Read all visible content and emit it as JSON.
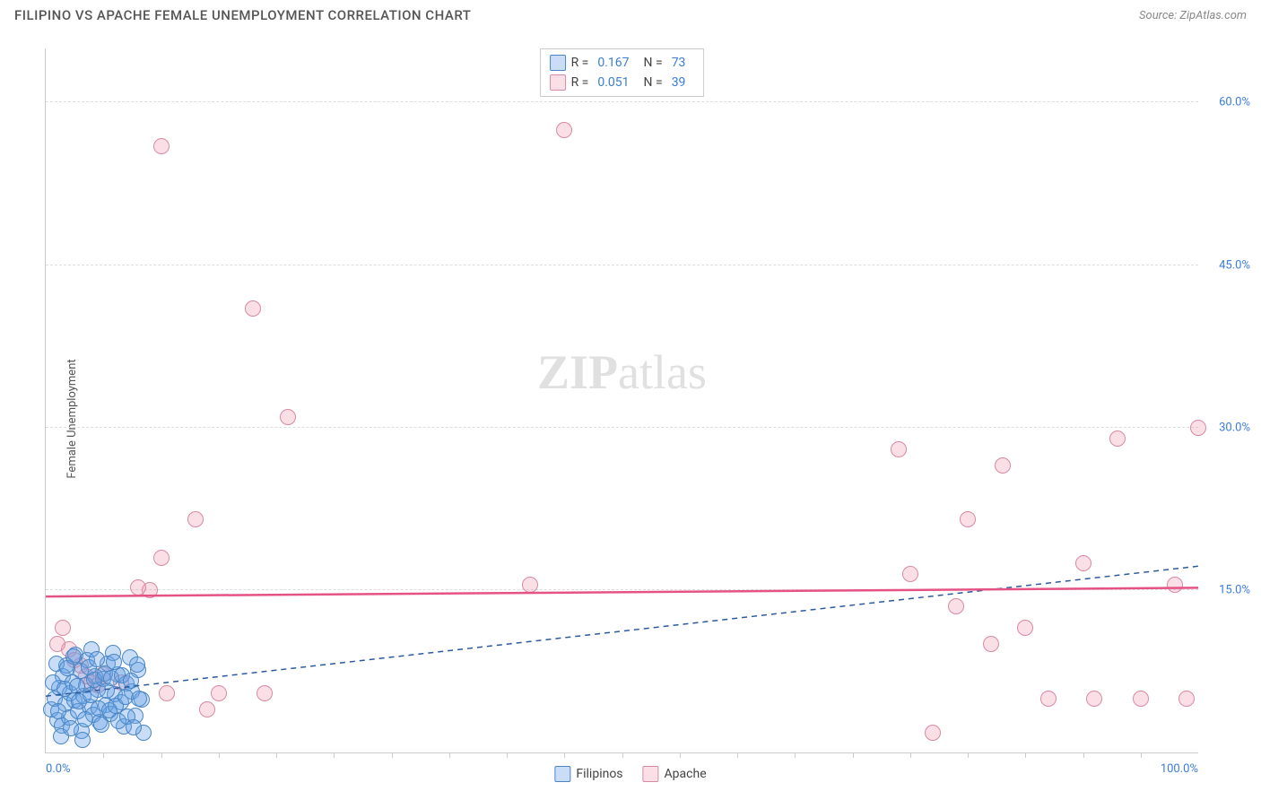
{
  "header": {
    "title": "FILIPINO VS APACHE FEMALE UNEMPLOYMENT CORRELATION CHART",
    "source": "Source: ZipAtlas.com"
  },
  "yaxis": {
    "title": "Female Unemployment",
    "min": 0,
    "max": 65,
    "ticks": [
      {
        "v": 15,
        "label": "15.0%"
      },
      {
        "v": 30,
        "label": "30.0%"
      },
      {
        "v": 45,
        "label": "45.0%"
      },
      {
        "v": 60,
        "label": "60.0%"
      }
    ]
  },
  "xaxis": {
    "min": 0,
    "max": 100,
    "minor_ticks": [
      5,
      10,
      15,
      20,
      25,
      30,
      35,
      40,
      45,
      50,
      55,
      60,
      65,
      70,
      75,
      80,
      85,
      90,
      95
    ],
    "labels": [
      {
        "v": 0,
        "label": "0.0%"
      },
      {
        "v": 100,
        "label": "100.0%"
      }
    ]
  },
  "series": {
    "filipinos": {
      "label": "Filipinos",
      "fill": "rgba(100,160,230,0.35)",
      "stroke": "#4a86c5",
      "marker_radius": 9,
      "r_value": "0.167",
      "n_value": "73",
      "trend": {
        "y_at_x0": 5.2,
        "y_at_x100": 17.2,
        "dashed": true,
        "color": "#2d5a9e",
        "width": 1.5
      },
      "points": [
        {
          "x": 0.5,
          "y": 4
        },
        {
          "x": 0.8,
          "y": 5
        },
        {
          "x": 1,
          "y": 3
        },
        {
          "x": 1.2,
          "y": 6
        },
        {
          "x": 1.4,
          "y": 2.5
        },
        {
          "x": 1.5,
          "y": 7
        },
        {
          "x": 1.7,
          "y": 4.5
        },
        {
          "x": 1.8,
          "y": 8
        },
        {
          "x": 2,
          "y": 3.2
        },
        {
          "x": 2.1,
          "y": 5.5
        },
        {
          "x": 2.3,
          "y": 6.5
        },
        {
          "x": 2.5,
          "y": 4.8
        },
        {
          "x": 2.6,
          "y": 9
        },
        {
          "x": 2.8,
          "y": 3.8
        },
        {
          "x": 3,
          "y": 7.5
        },
        {
          "x": 3.1,
          "y": 2
        },
        {
          "x": 3.3,
          "y": 5.2
        },
        {
          "x": 3.5,
          "y": 6.2
        },
        {
          "x": 3.6,
          "y": 8.5
        },
        {
          "x": 3.8,
          "y": 4.2
        },
        {
          "x": 4,
          "y": 9.5
        },
        {
          "x": 4.1,
          "y": 3.5
        },
        {
          "x": 4.3,
          "y": 7
        },
        {
          "x": 4.5,
          "y": 5.8
        },
        {
          "x": 4.7,
          "y": 2.8
        },
        {
          "x": 5,
          "y": 6.8
        },
        {
          "x": 5.2,
          "y": 4.4
        },
        {
          "x": 5.4,
          "y": 8.2
        },
        {
          "x": 5.6,
          "y": 3.6
        },
        {
          "x": 5.8,
          "y": 9.2
        },
        {
          "x": 6,
          "y": 5.4
        },
        {
          "x": 6.2,
          "y": 7.2
        },
        {
          "x": 6.5,
          "y": 4.6
        },
        {
          "x": 6.8,
          "y": 2.4
        },
        {
          "x": 7,
          "y": 6.4
        },
        {
          "x": 7.3,
          "y": 8.8
        },
        {
          "x": 7.5,
          "y": 5.6
        },
        {
          "x": 7.8,
          "y": 3.4
        },
        {
          "x": 8,
          "y": 7.6
        },
        {
          "x": 8.3,
          "y": 4.9
        },
        {
          "x": 8.5,
          "y": 1.8
        },
        {
          "x": 1.3,
          "y": 1.5
        },
        {
          "x": 2.2,
          "y": 2.2
        },
        {
          "x": 3.2,
          "y": 1.2
        },
        {
          "x": 0.6,
          "y": 6.5
        },
        {
          "x": 0.9,
          "y": 8.2
        },
        {
          "x": 1.1,
          "y": 3.8
        },
        {
          "x": 1.6,
          "y": 5.9
        },
        {
          "x": 1.9,
          "y": 7.8
        },
        {
          "x": 2.4,
          "y": 8.9
        },
        {
          "x": 2.7,
          "y": 6.1
        },
        {
          "x": 2.9,
          "y": 4.7
        },
        {
          "x": 3.4,
          "y": 3.1
        },
        {
          "x": 3.7,
          "y": 7.9
        },
        {
          "x": 3.9,
          "y": 5.3
        },
        {
          "x": 4.2,
          "y": 6.7
        },
        {
          "x": 4.4,
          "y": 8.6
        },
        {
          "x": 4.6,
          "y": 4.1
        },
        {
          "x": 4.8,
          "y": 2.6
        },
        {
          "x": 5.1,
          "y": 7.3
        },
        {
          "x": 5.3,
          "y": 5.7
        },
        {
          "x": 5.5,
          "y": 3.9
        },
        {
          "x": 5.7,
          "y": 6.9
        },
        {
          "x": 5.9,
          "y": 8.4
        },
        {
          "x": 6.1,
          "y": 4.3
        },
        {
          "x": 6.3,
          "y": 2.9
        },
        {
          "x": 6.6,
          "y": 7.1
        },
        {
          "x": 6.9,
          "y": 5.1
        },
        {
          "x": 7.1,
          "y": 3.3
        },
        {
          "x": 7.4,
          "y": 6.6
        },
        {
          "x": 7.6,
          "y": 2.3
        },
        {
          "x": 7.9,
          "y": 8.1
        },
        {
          "x": 8.1,
          "y": 5.0
        }
      ]
    },
    "apache": {
      "label": "Apache",
      "fill": "rgba(240,150,175,0.30)",
      "stroke": "#d88aa3",
      "marker_radius": 9,
      "r_value": "0.051",
      "n_value": "39",
      "trend": {
        "y_at_x0": 14.4,
        "y_at_x100": 15.2,
        "dashed": false,
        "color": "#e55384",
        "width": 2.5
      },
      "points": [
        {
          "x": 10,
          "y": 56
        },
        {
          "x": 45,
          "y": 57.5
        },
        {
          "x": 18,
          "y": 41
        },
        {
          "x": 21,
          "y": 31
        },
        {
          "x": 13,
          "y": 21.5
        },
        {
          "x": 9,
          "y": 15
        },
        {
          "x": 8,
          "y": 15.2
        },
        {
          "x": 10,
          "y": 18
        },
        {
          "x": 1.5,
          "y": 11.5
        },
        {
          "x": 2,
          "y": 9.5
        },
        {
          "x": 2.5,
          "y": 8.5
        },
        {
          "x": 3,
          "y": 8
        },
        {
          "x": 3.5,
          "y": 7
        },
        {
          "x": 4,
          "y": 6.5
        },
        {
          "x": 4.5,
          "y": 6.2
        },
        {
          "x": 5,
          "y": 7.2
        },
        {
          "x": 6.5,
          "y": 6.5
        },
        {
          "x": 10.5,
          "y": 5.5
        },
        {
          "x": 14,
          "y": 4
        },
        {
          "x": 15,
          "y": 5.5
        },
        {
          "x": 19,
          "y": 5.5
        },
        {
          "x": 42,
          "y": 15.5
        },
        {
          "x": 74,
          "y": 28
        },
        {
          "x": 75,
          "y": 16.5
        },
        {
          "x": 77,
          "y": 1.8
        },
        {
          "x": 79,
          "y": 13.5
        },
        {
          "x": 80,
          "y": 21.5
        },
        {
          "x": 82,
          "y": 10
        },
        {
          "x": 83,
          "y": 26.5
        },
        {
          "x": 85,
          "y": 11.5
        },
        {
          "x": 87,
          "y": 5
        },
        {
          "x": 90,
          "y": 17.5
        },
        {
          "x": 91,
          "y": 5
        },
        {
          "x": 93,
          "y": 29
        },
        {
          "x": 95,
          "y": 5
        },
        {
          "x": 98,
          "y": 15.5
        },
        {
          "x": 99,
          "y": 5
        },
        {
          "x": 100,
          "y": 30
        },
        {
          "x": 1,
          "y": 10
        }
      ]
    }
  },
  "legend_top": {
    "r_label": "R =",
    "n_label": "N ="
  },
  "watermark": {
    "bold": "ZIP",
    "rest": "atlas"
  }
}
